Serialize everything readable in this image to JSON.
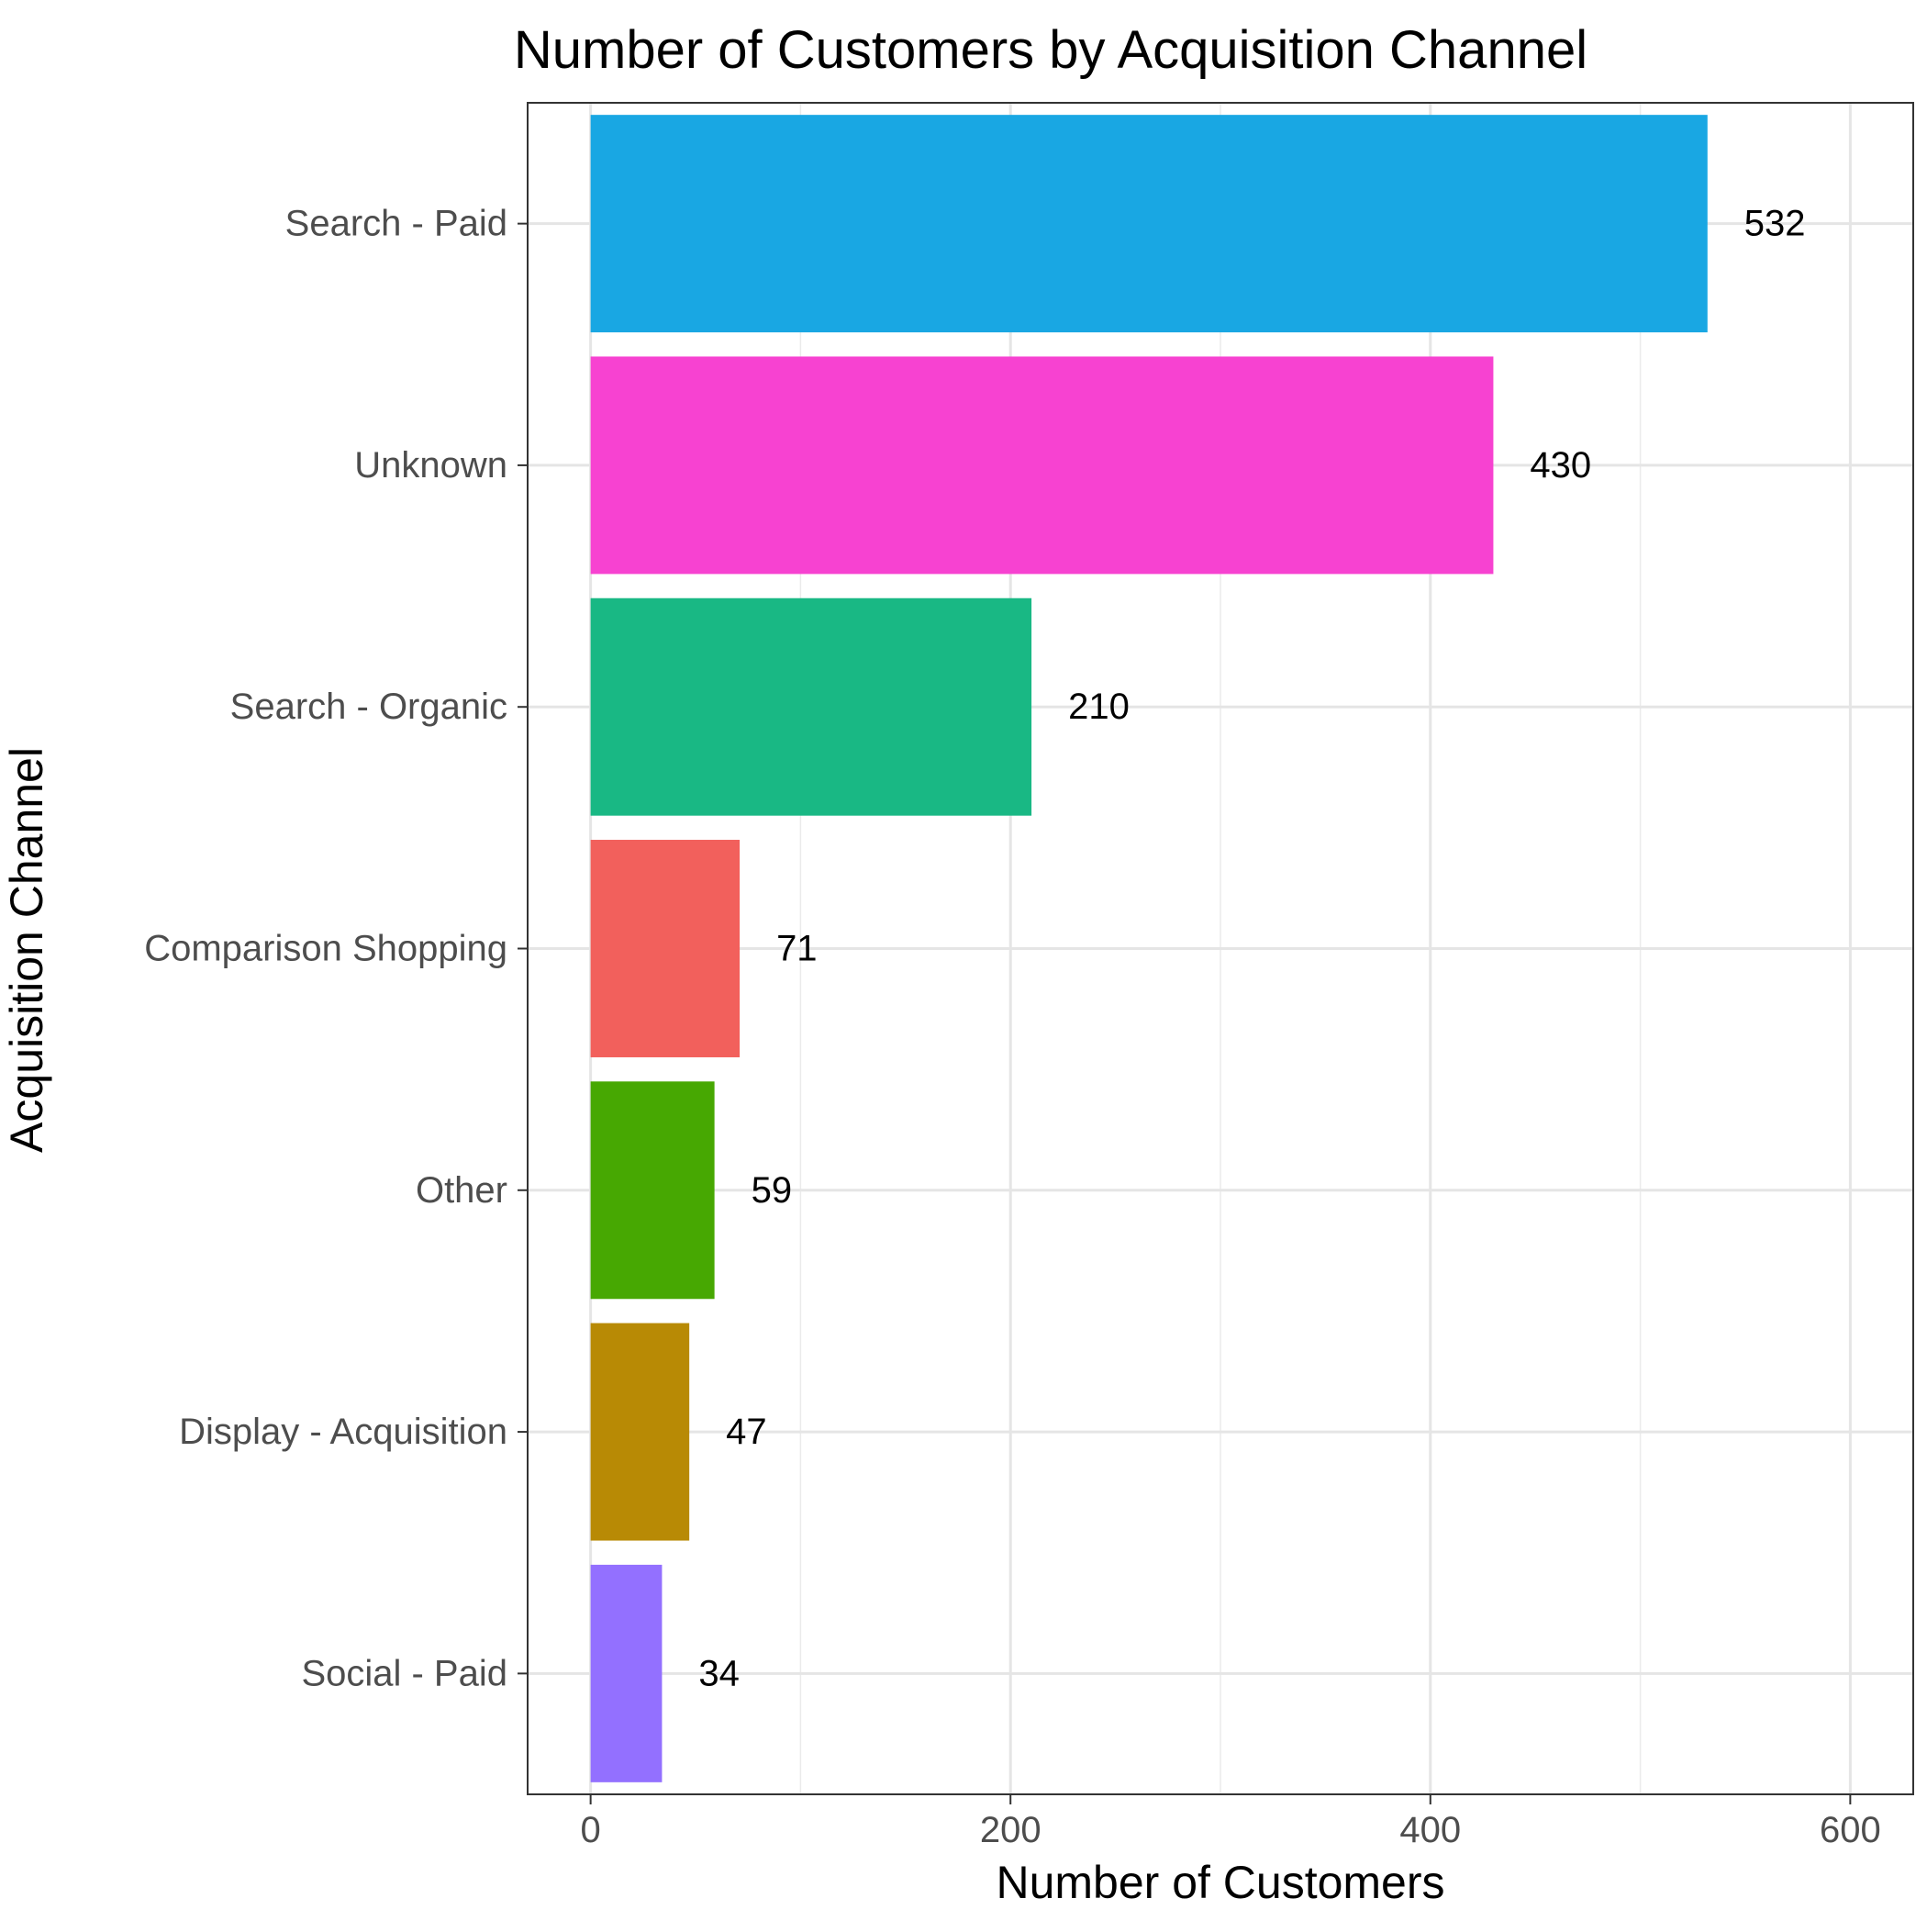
{
  "chart_data": {
    "type": "bar",
    "orientation": "horizontal",
    "title": "Number of Customers by Acquisition Channel",
    "xlabel": "Number of Customers",
    "ylabel": "Acquisition Channel",
    "xlim": [
      -30,
      630
    ],
    "xticks": [
      0,
      200,
      400,
      600
    ],
    "x_minor_gridlines": [
      100,
      300,
      500
    ],
    "grid": true,
    "categories": [
      "Search - Paid",
      "Unknown",
      "Search - Organic",
      "Comparison Shopping",
      "Other",
      "Display - Acquisition",
      "Social - Paid"
    ],
    "values": [
      532,
      430,
      210,
      71,
      59,
      47,
      34
    ],
    "data_labels": [
      "532",
      "430",
      "210",
      "71",
      "59",
      "47",
      "34"
    ],
    "colors": [
      "#19A7E3",
      "#F742D1",
      "#19B884",
      "#F2605C",
      "#47A802",
      "#B88A05",
      "#9370FF"
    ],
    "legend": "none"
  }
}
